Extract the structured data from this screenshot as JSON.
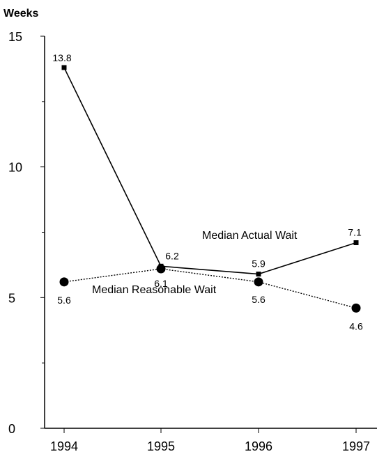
{
  "chart_data": {
    "type": "line",
    "title": "",
    "ylabel": "Weeks",
    "xlabel": "",
    "x": [
      "1994",
      "1995",
      "1996",
      "1997"
    ],
    "ylim": [
      0,
      15
    ],
    "yticks_major": [
      0,
      5,
      10,
      15
    ],
    "yticks_major_labels": [
      "0",
      "5",
      "10",
      "15"
    ],
    "yticks_minor": [
      2.5,
      7.5,
      12.5
    ],
    "grid": false,
    "series": [
      {
        "name": "Median Actual Wait",
        "style": "solid",
        "marker": "square",
        "values": [
          13.8,
          6.2,
          5.9,
          7.1
        ],
        "labels": [
          "13.8",
          "6.2",
          "5.9",
          "7.1"
        ]
      },
      {
        "name": "Median Reasonable Wait",
        "style": "dotted",
        "marker": "circle",
        "values": [
          5.6,
          6.1,
          5.6,
          4.6
        ],
        "labels": [
          "5.6",
          "6.1",
          "5.6",
          "4.6"
        ]
      }
    ]
  }
}
